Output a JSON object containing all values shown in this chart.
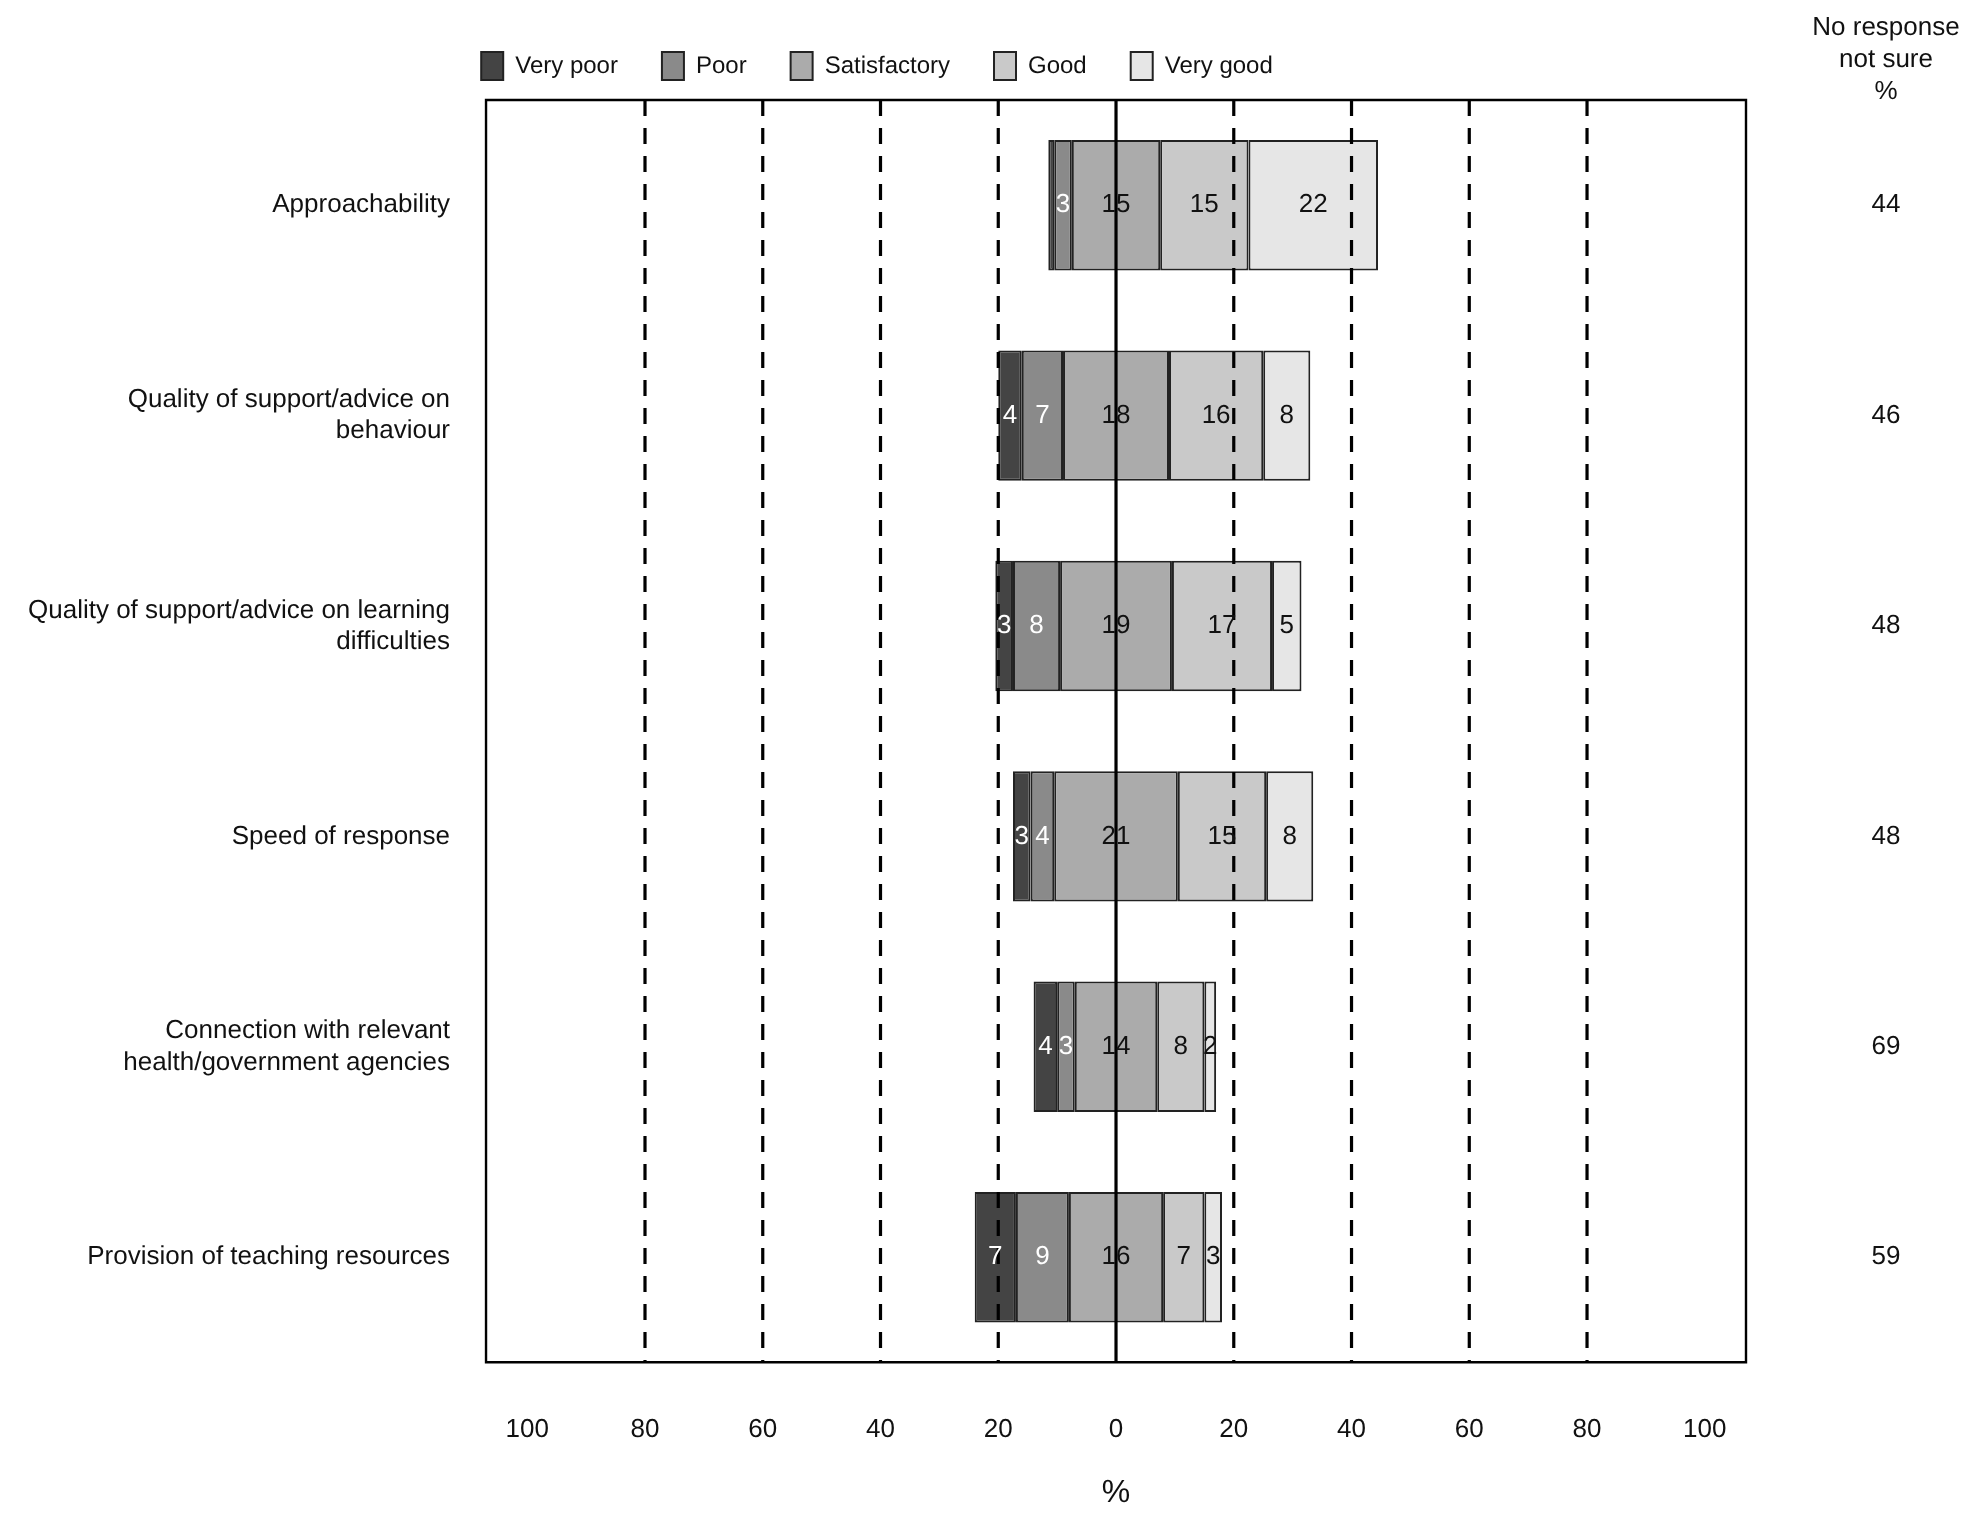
{
  "chart_data": {
    "type": "bar",
    "orientation": "horizontal",
    "xlabel": "%",
    "categories": [
      "Approachability",
      "Quality of support/advice on behaviour",
      "Quality of support/advice on learning difficulties",
      "Speed of response",
      "Connection with relevant health/government agencies",
      "Provision of teaching resources"
    ],
    "series": [
      {
        "name": "Very poor",
        "color": "#444444",
        "base": [
          -11.5,
          -20,
          -20.5,
          -17.5,
          -14,
          -24
        ],
        "values": [
          1,
          4,
          3,
          3,
          4,
          7
        ],
        "value_labels": [
          null,
          "4",
          "3",
          "3",
          "4",
          "7"
        ]
      },
      {
        "name": "Poor",
        "color": "#8a8a8a",
        "base": [
          -10.5,
          -16,
          -17.5,
          -14.5,
          -10,
          -17
        ],
        "values": [
          3,
          7,
          8,
          4,
          3,
          9
        ],
        "value_labels": [
          "3",
          "7",
          "8",
          "4",
          "3",
          "9"
        ]
      },
      {
        "name": "Satisfactory",
        "color": "#ababab",
        "base": [
          -7.5,
          -9,
          -9.5,
          -10.5,
          -7,
          -8
        ],
        "values": [
          15,
          18,
          19,
          21,
          14,
          16
        ],
        "value_labels": [
          "15",
          "18",
          "19",
          "21",
          "14",
          "16"
        ]
      },
      {
        "name": "Good",
        "color": "#c9c9c9",
        "base": [
          7.5,
          9,
          9.5,
          10.5,
          7,
          8
        ],
        "values": [
          15,
          16,
          17,
          15,
          8,
          7
        ],
        "value_labels": [
          "15",
          "16",
          "17",
          "15",
          "8",
          "7"
        ]
      },
      {
        "name": "Very good",
        "color": "#e6e6e6",
        "base": [
          22.5,
          25,
          26.5,
          25.5,
          15,
          15
        ],
        "values": [
          22,
          8,
          5,
          8,
          2,
          3
        ],
        "value_labels": [
          "22",
          "8",
          "5",
          "8",
          "2",
          "3"
        ]
      }
    ],
    "xlim": [
      -107,
      107
    ],
    "xticks": [
      {
        "value": -100,
        "label": "100"
      },
      {
        "value": -80,
        "label": "80"
      },
      {
        "value": -60,
        "label": "60"
      },
      {
        "value": -40,
        "label": "40"
      },
      {
        "value": -20,
        "label": "20"
      },
      0,
      20,
      40,
      60,
      80,
      100
    ],
    "ref_lines": [
      {
        "axis": "x",
        "value": -80,
        "line_style": "dashed"
      },
      {
        "axis": "x",
        "value": -60,
        "line_style": "dashed"
      },
      {
        "axis": "x",
        "value": -40,
        "line_style": "dashed"
      },
      {
        "axis": "x",
        "value": -20,
        "line_style": "dashed"
      },
      {
        "axis": "x",
        "value": 0,
        "line_style": "solid"
      },
      {
        "axis": "x",
        "value": 20,
        "line_style": "dashed"
      },
      {
        "axis": "x",
        "value": 40,
        "line_style": "dashed"
      },
      {
        "axis": "x",
        "value": 60,
        "line_style": "dashed"
      },
      {
        "axis": "x",
        "value": 80,
        "line_style": "dashed"
      }
    ],
    "annotations": [
      "No response\nnot sure\n%",
      "44",
      "46",
      "48",
      "48",
      "69",
      "59"
    ],
    "legend": "top"
  }
}
